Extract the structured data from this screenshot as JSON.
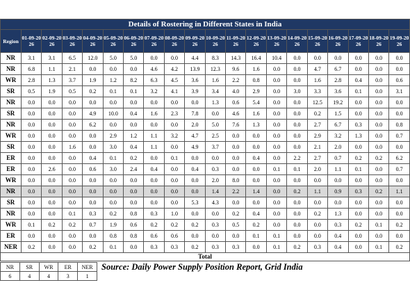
{
  "title": "Details of Rostering in Different States in India",
  "header": [
    "Region",
    "01-09-2026",
    "02-09-2026",
    "03-09-2026",
    "04-09-2026",
    "05-09-2026",
    "06-09-2026",
    "07-09-2026",
    "08-09-2026",
    "09-09-2026",
    "10-09-2026",
    "11-09-2026",
    "12-09-2026",
    "13-09-2026",
    "14-09-2026",
    "15-09-2026",
    "16-09-2026",
    "17-09-2026",
    "18-09-2026",
    "19-09-2026"
  ],
  "rows": [
    {
      "region": "NR",
      "values": [
        "3.1",
        "3.1",
        "6.5",
        "12.0",
        "5.0",
        "5.0",
        "0.0",
        "0.0",
        "4.4",
        "8.3",
        "14.3",
        "16.4",
        "10.4",
        "0.0",
        "0.0",
        "0.0",
        "0.0",
        "0.0",
        "0.0"
      ]
    },
    {
      "region": "NR",
      "values": [
        "6.8",
        "1.1",
        "2.1",
        "0.0",
        "0.0",
        "0.0",
        "4.6",
        "4.2",
        "13.9",
        "12.3",
        "9.6",
        "1.6",
        "0.0",
        "0.0",
        "4.7",
        "6.7",
        "0.0",
        "0.0",
        "0.0"
      ]
    },
    {
      "region": "WR",
      "values": [
        "2.8",
        "1.3",
        "3.7",
        "1.9",
        "1.2",
        "8.2",
        "6.3",
        "4.5",
        "3.6",
        "1.6",
        "2.2",
        "0.8",
        "0.0",
        "0.0",
        "1.6",
        "2.8",
        "0.4",
        "0.0",
        "0.6"
      ]
    },
    {
      "region": "SR",
      "values": [
        "0.5",
        "1.9",
        "0.5",
        "0.2",
        "0.1",
        "0.1",
        "3.2",
        "4.1",
        "3.9",
        "3.4",
        "4.0",
        "2.9",
        "0.0",
        "3.0",
        "3.3",
        "3.6",
        "0.1",
        "0.0",
        "3.1"
      ]
    },
    {
      "region": "NR",
      "values": [
        "0.0",
        "0.0",
        "0.0",
        "0.0",
        "0.0",
        "0.0",
        "0.0",
        "0.0",
        "0.0",
        "1.3",
        "0.6",
        "5.4",
        "0.0",
        "0.0",
        "12.5",
        "19.2",
        "0.0",
        "0.0",
        "0.0"
      ]
    },
    {
      "region": "SR",
      "values": [
        "0.0",
        "0.0",
        "0.0",
        "4.9",
        "10.0",
        "0.4",
        "1.6",
        "2.3",
        "7.8",
        "0.0",
        "4.6",
        "1.6",
        "0.0",
        "0.0",
        "0.2",
        "1.5",
        "0.0",
        "0.0",
        "0.0"
      ]
    },
    {
      "region": "NR",
      "values": [
        "0.0",
        "0.0",
        "0.0",
        "6.2",
        "0.0",
        "0.0",
        "0.0",
        "0.0",
        "2.0",
        "5.0",
        "7.6",
        "1.3",
        "0.0",
        "0.0",
        "2.7",
        "6.7",
        "0.3",
        "0.0",
        "0.8"
      ]
    },
    {
      "region": "WR",
      "values": [
        "0.0",
        "0.0",
        "0.0",
        "0.0",
        "2.9",
        "1.2",
        "1.1",
        "3.2",
        "4.7",
        "2.5",
        "0.0",
        "0.0",
        "0.0",
        "0.0",
        "2.9",
        "3.2",
        "1.3",
        "0.0",
        "0.7"
      ]
    },
    {
      "region": "SR",
      "values": [
        "0.0",
        "0.0",
        "1.6",
        "0.0",
        "3.0",
        "0.4",
        "1.1",
        "0.0",
        "4.9",
        "3.7",
        "0.0",
        "0.0",
        "0.0",
        "0.0",
        "2.1",
        "2.0",
        "0.0",
        "0.0",
        "0.0"
      ]
    },
    {
      "region": "ER",
      "values": [
        "0.0",
        "0.0",
        "0.0",
        "0.4",
        "0.1",
        "0.2",
        "0.0",
        "0.1",
        "0.0",
        "0.0",
        "0.0",
        "0.4",
        "0.0",
        "2.2",
        "2.7",
        "0.7",
        "0.2",
        "0.2",
        "6.2"
      ]
    },
    {
      "region": "ER",
      "values": [
        "0.0",
        "2.6",
        "0.0",
        "0.6",
        "3.0",
        "2.4",
        "0.4",
        "0.0",
        "0.4",
        "0.3",
        "0.0",
        "0.0",
        "0.1",
        "0.1",
        "2.0",
        "1.1",
        "0.1",
        "0.0",
        "0.7"
      ]
    },
    {
      "region": "WR",
      "values": [
        "0.0",
        "0.0",
        "0.0",
        "0.0",
        "0.0",
        "0.0",
        "0.0",
        "0.0",
        "0.0",
        "2.0",
        "8.0",
        "0.0",
        "0.0",
        "0.0",
        "0.0",
        "0.0",
        "0.0",
        "0.0",
        "0.0"
      ]
    },
    {
      "region": "NR",
      "values": [
        "0.0",
        "0.0",
        "0.0",
        "0.0",
        "0.0",
        "0.0",
        "0.0",
        "0.0",
        "0.0",
        "1.4",
        "2.2",
        "1.4",
        "0.0",
        "0.2",
        "1.1",
        "0.9",
        "0.3",
        "0.2",
        "1.1"
      ]
    },
    {
      "region": "SR",
      "values": [
        "0.0",
        "0.0",
        "0.0",
        "0.0",
        "0.0",
        "0.0",
        "0.0",
        "0.0",
        "5.3",
        "4.3",
        "0.0",
        "0.0",
        "0.0",
        "0.0",
        "0.0",
        "0.0",
        "0.0",
        "0.0",
        "0.0"
      ]
    },
    {
      "region": "NR",
      "values": [
        "0.0",
        "0.0",
        "0.1",
        "0.3",
        "0.2",
        "0.8",
        "0.3",
        "1.0",
        "0.0",
        "0.0",
        "0.2",
        "0.4",
        "0.0",
        "0.0",
        "0.2",
        "1.3",
        "0.0",
        "0.0",
        "0.0"
      ]
    },
    {
      "region": "WR",
      "values": [
        "0.1",
        "0.2",
        "0.2",
        "0.7",
        "1.9",
        "0.6",
        "0.2",
        "0.2",
        "0.2",
        "0.3",
        "0.5",
        "0.2",
        "0.0",
        "0.0",
        "0.0",
        "0.3",
        "0.2",
        "0.1",
        "0.2"
      ]
    },
    {
      "region": "ER",
      "values": [
        "0.0",
        "0.0",
        "0.0",
        "0.0",
        "0.8",
        "0.8",
        "0.6",
        "0.6",
        "0.0",
        "0.0",
        "0.0",
        "0.1",
        "0.1",
        "0.0",
        "0.0",
        "0.4",
        "0.0",
        "0.0",
        "0.0"
      ]
    },
    {
      "region": "NER",
      "values": [
        "0.2",
        "0.0",
        "0.0",
        "0.2",
        "0.1",
        "0.0",
        "0.3",
        "0.3",
        "0.2",
        "0.3",
        "0.3",
        "0.0",
        "0.1",
        "0.2",
        "0.3",
        "0.4",
        "0.0",
        "0.1",
        "0.2"
      ]
    }
  ],
  "total_label": "Total",
  "summary": {
    "regions": [
      "NR",
      "SR",
      "WR",
      "ER",
      "NER"
    ],
    "counts": [
      "6",
      "4",
      "4",
      "3",
      "1"
    ],
    "source": "Source: Daily Power Supply Position Report, Grid India"
  }
}
